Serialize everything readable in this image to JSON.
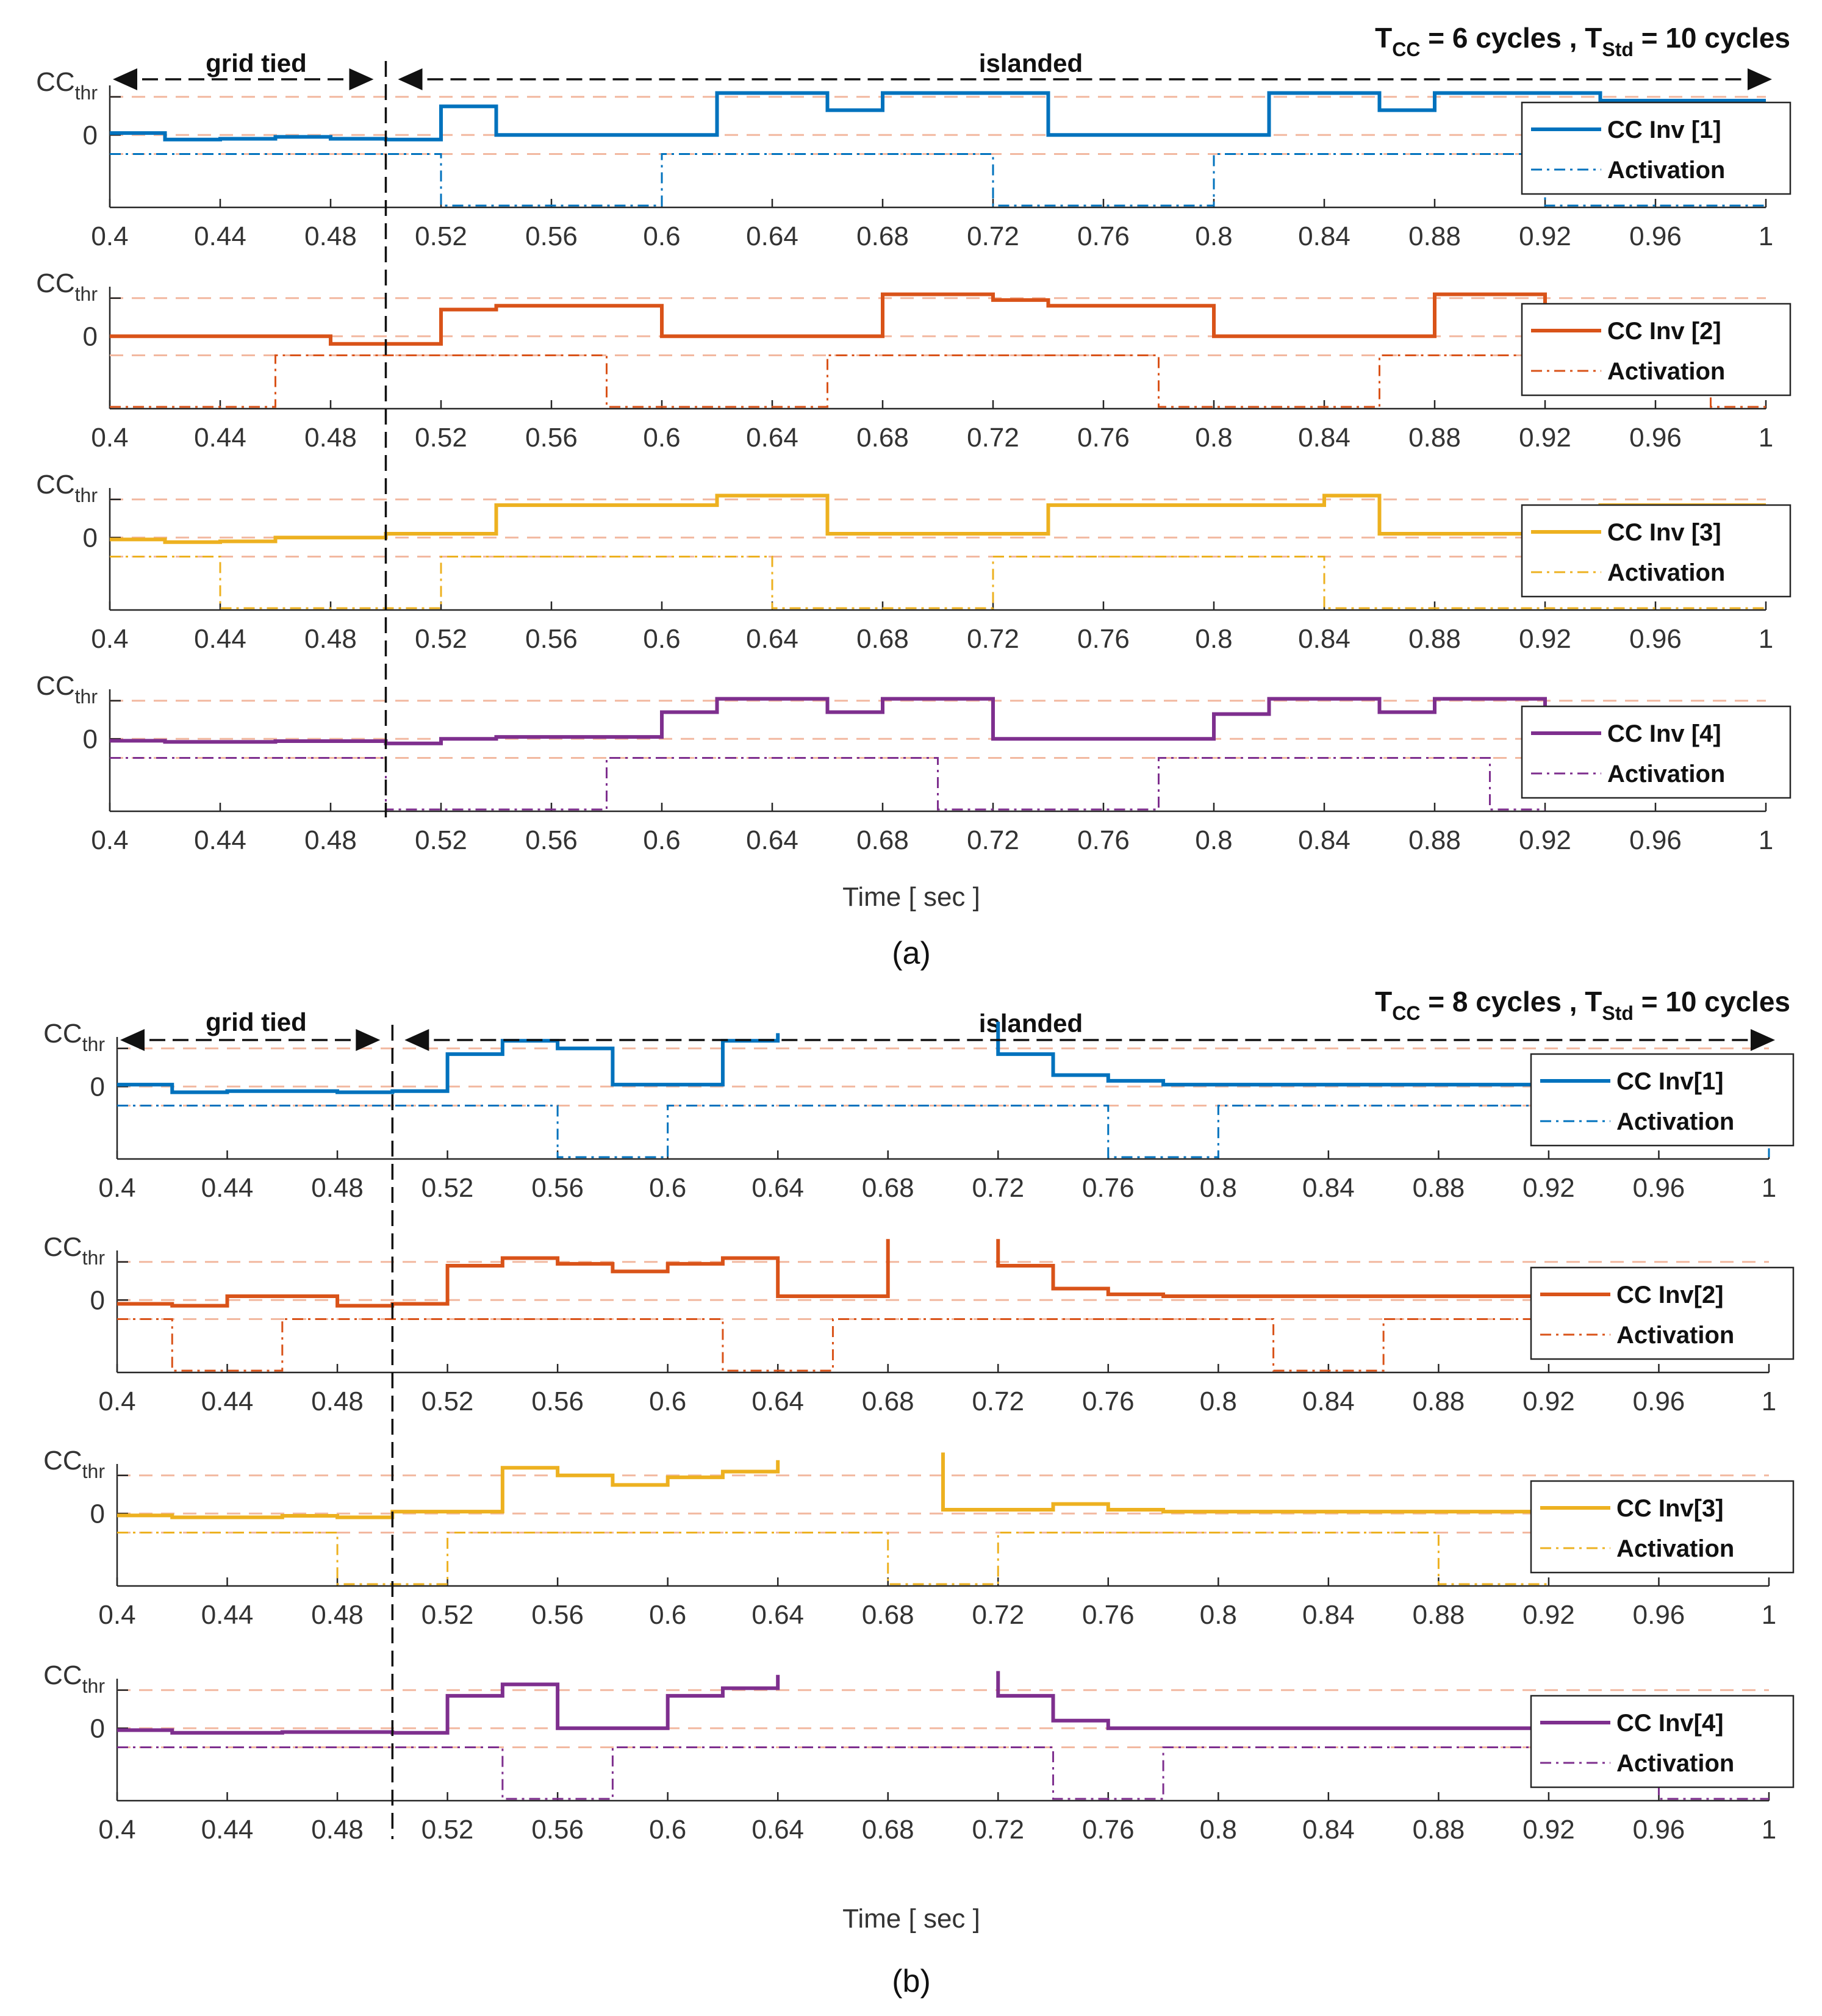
{
  "chart_data": [
    {
      "panel": "a",
      "type": "line",
      "caption": "(a)",
      "header": {
        "t_cc_text": "T",
        "t_cc_sub": "CC",
        "t_cc_value": " = 6 cycles , ",
        "t_std_text": "T",
        "t_std_sub": "Std",
        "t_std_value": " = 10 cycles"
      },
      "regions": {
        "grid_tied": "grid tied",
        "islanded": "islanded",
        "boundary_x": 0.5
      },
      "xlabel": "Time [ sec ]",
      "xlim": [
        0.4,
        1.0
      ],
      "xticks": [
        "0.4",
        "0.44",
        "0.48",
        "0.52",
        "0.56",
        "0.6",
        "0.64",
        "0.68",
        "0.72",
        "0.76",
        "0.8",
        "0.84",
        "0.88",
        "0.92",
        "0.96",
        "1"
      ],
      "ylim": [
        -1.9,
        1.3
      ],
      "ytick_labels": {
        "thr_main": "CC",
        "thr_sub": "thr",
        "zero": "0"
      },
      "threshold": 1.0,
      "series": [
        {
          "name": "CC Inv [1]",
          "color": "#0072BD",
          "cc": [
            [
              0.4,
              0.05
            ],
            [
              0.42,
              -0.12
            ],
            [
              0.44,
              -0.1
            ],
            [
              0.46,
              -0.05
            ],
            [
              0.48,
              -0.1
            ],
            [
              0.5,
              -0.12
            ],
            [
              0.52,
              0.75
            ],
            [
              0.54,
              0.0
            ],
            [
              0.56,
              0.0
            ],
            [
              0.62,
              1.1
            ],
            [
              0.64,
              1.1
            ],
            [
              0.66,
              0.65
            ],
            [
              0.68,
              1.1
            ],
            [
              0.72,
              1.1
            ],
            [
              0.74,
              0.0
            ],
            [
              0.8,
              0.0
            ],
            [
              0.82,
              1.1
            ],
            [
              0.86,
              0.65
            ],
            [
              0.88,
              1.1
            ],
            [
              0.92,
              1.1
            ],
            [
              0.94,
              0.9
            ],
            [
              1.0,
              0.9
            ]
          ],
          "activation": [
            [
              0.4,
              1
            ],
            [
              0.52,
              0
            ],
            [
              0.6,
              1
            ],
            [
              0.72,
              0
            ],
            [
              0.8,
              1
            ],
            [
              0.92,
              0
            ],
            [
              1.0,
              0
            ]
          ]
        },
        {
          "name": "CC Inv [2]",
          "color": "#D95319",
          "cc": [
            [
              0.4,
              0.0
            ],
            [
              0.48,
              -0.2
            ],
            [
              0.5,
              -0.2
            ],
            [
              0.52,
              0.7
            ],
            [
              0.54,
              0.8
            ],
            [
              0.6,
              0.0
            ],
            [
              0.68,
              1.1
            ],
            [
              0.72,
              0.95
            ],
            [
              0.74,
              0.8
            ],
            [
              0.8,
              0.0
            ],
            [
              0.86,
              0.0
            ],
            [
              0.88,
              1.1
            ],
            [
              0.92,
              0.8
            ],
            [
              1.0,
              0.8
            ]
          ],
          "activation": [
            [
              0.4,
              0
            ],
            [
              0.46,
              1
            ],
            [
              0.58,
              0
            ],
            [
              0.66,
              1
            ],
            [
              0.78,
              0
            ],
            [
              0.86,
              1
            ],
            [
              0.98,
              0
            ],
            [
              1.0,
              0
            ]
          ]
        },
        {
          "name": "CC Inv [3]",
          "color": "#EDB120",
          "cc": [
            [
              0.4,
              -0.05
            ],
            [
              0.42,
              -0.12
            ],
            [
              0.44,
              -0.1
            ],
            [
              0.46,
              0.0
            ],
            [
              0.5,
              0.1
            ],
            [
              0.52,
              0.1
            ],
            [
              0.54,
              0.85
            ],
            [
              0.62,
              1.1
            ],
            [
              0.66,
              0.1
            ],
            [
              0.74,
              0.85
            ],
            [
              0.84,
              1.1
            ],
            [
              0.86,
              0.1
            ],
            [
              0.92,
              0.1
            ],
            [
              0.94,
              0.85
            ],
            [
              1.0,
              0.85
            ]
          ],
          "activation": [
            [
              0.4,
              1
            ],
            [
              0.44,
              0
            ],
            [
              0.52,
              1
            ],
            [
              0.64,
              0
            ],
            [
              0.72,
              1
            ],
            [
              0.84,
              0
            ],
            [
              0.92,
              0
            ],
            [
              1.0,
              0
            ]
          ]
        },
        {
          "name": "CC Inv [4]",
          "color": "#7E2F8E",
          "cc": [
            [
              0.4,
              -0.05
            ],
            [
              0.42,
              -0.08
            ],
            [
              0.46,
              -0.06
            ],
            [
              0.5,
              -0.12
            ],
            [
              0.52,
              0.0
            ],
            [
              0.54,
              0.05
            ],
            [
              0.6,
              0.7
            ],
            [
              0.62,
              1.05
            ],
            [
              0.66,
              0.7
            ],
            [
              0.68,
              1.05
            ],
            [
              0.72,
              1.05
            ],
            [
              0.72,
              0.0
            ],
            [
              0.8,
              0.0
            ],
            [
              0.8,
              0.65
            ],
            [
              0.82,
              1.05
            ],
            [
              0.86,
              0.7
            ],
            [
              0.88,
              1.05
            ],
            [
              0.92,
              1.05
            ],
            [
              0.92,
              0.0
            ]
          ],
          "activation": [
            [
              0.4,
              1
            ],
            [
              0.5,
              0
            ],
            [
              0.58,
              1
            ],
            [
              0.7,
              0
            ],
            [
              0.78,
              1
            ],
            [
              0.9,
              0
            ],
            [
              0.92,
              0
            ]
          ]
        }
      ]
    },
    {
      "panel": "b",
      "type": "line",
      "caption": "(b)",
      "header": {
        "t_cc_text": "T",
        "t_cc_sub": "CC",
        "t_cc_value": " = 8 cycles , ",
        "t_std_text": "T",
        "t_std_sub": "Std",
        "t_std_value": " = 10 cycles"
      },
      "regions": {
        "grid_tied": "grid tied",
        "islanded": "islanded",
        "boundary_x": 0.5
      },
      "xlabel": "Time [ sec ]",
      "xlim": [
        0.4,
        1.0
      ],
      "xticks": [
        "0.4",
        "0.44",
        "0.48",
        "0.52",
        "0.56",
        "0.6",
        "0.64",
        "0.68",
        "0.72",
        "0.76",
        "0.8",
        "0.84",
        "0.88",
        "0.92",
        "0.96",
        "1"
      ],
      "ylim": [
        -1.9,
        1.3
      ],
      "ytick_labels": {
        "thr_main": "CC",
        "thr_sub": "thr",
        "zero": "0"
      },
      "threshold": 1.0,
      "series": [
        {
          "name": "CC Inv[1]",
          "color": "#0072BD",
          "cc": [
            [
              0.4,
              0.05
            ],
            [
              0.42,
              -0.15
            ],
            [
              0.44,
              -0.12
            ],
            [
              0.48,
              -0.15
            ],
            [
              0.5,
              -0.12
            ],
            [
              0.52,
              0.85
            ],
            [
              0.54,
              1.2
            ],
            [
              0.56,
              1.0
            ],
            [
              0.58,
              0.05
            ],
            [
              0.62,
              1.2
            ],
            [
              0.64,
              1.4
            ],
            null,
            [
              0.72,
              1.7
            ],
            [
              0.72,
              0.85
            ],
            [
              0.74,
              0.3
            ],
            [
              0.76,
              0.15
            ],
            [
              0.78,
              0.05
            ],
            [
              0.92,
              0.05
            ],
            [
              1.0,
              0.05
            ]
          ],
          "activation": [
            [
              0.4,
              1
            ],
            [
              0.56,
              0
            ],
            [
              0.6,
              1
            ],
            [
              0.76,
              0
            ],
            [
              0.8,
              1
            ],
            [
              0.92,
              1
            ],
            [
              1.0,
              0
            ]
          ]
        },
        {
          "name": "CC Inv[2]",
          "color": "#D95319",
          "cc": [
            [
              0.4,
              -0.1
            ],
            [
              0.42,
              -0.15
            ],
            [
              0.44,
              0.1
            ],
            [
              0.48,
              -0.15
            ],
            [
              0.5,
              -0.1
            ],
            [
              0.52,
              0.9
            ],
            [
              0.54,
              1.1
            ],
            [
              0.56,
              0.95
            ],
            [
              0.58,
              0.75
            ],
            [
              0.6,
              0.95
            ],
            [
              0.62,
              1.1
            ],
            [
              0.64,
              0.1
            ],
            [
              0.68,
              0.1
            ],
            [
              0.68,
              1.6
            ],
            null,
            [
              0.72,
              1.6
            ],
            [
              0.72,
              0.9
            ],
            [
              0.74,
              0.3
            ],
            [
              0.76,
              0.15
            ],
            [
              0.78,
              0.1
            ],
            [
              0.92,
              0.1
            ],
            [
              1.0,
              0.1
            ]
          ],
          "activation": [
            [
              0.4,
              1
            ],
            [
              0.42,
              0
            ],
            [
              0.46,
              1
            ],
            [
              0.62,
              0
            ],
            [
              0.66,
              1
            ],
            [
              0.82,
              0
            ],
            [
              0.86,
              1
            ],
            [
              0.92,
              1
            ],
            [
              1.0,
              1
            ]
          ]
        },
        {
          "name": "CC Inv[3]",
          "color": "#EDB120",
          "cc": [
            [
              0.4,
              -0.05
            ],
            [
              0.42,
              -0.1
            ],
            [
              0.46,
              -0.06
            ],
            [
              0.48,
              -0.1
            ],
            [
              0.5,
              0.05
            ],
            [
              0.52,
              0.05
            ],
            [
              0.54,
              1.2
            ],
            [
              0.56,
              1.0
            ],
            [
              0.58,
              0.75
            ],
            [
              0.6,
              0.95
            ],
            [
              0.62,
              1.1
            ],
            [
              0.64,
              1.4
            ],
            null,
            [
              0.7,
              1.6
            ],
            [
              0.7,
              0.1
            ],
            [
              0.74,
              0.1
            ],
            [
              0.74,
              0.25
            ],
            [
              0.76,
              0.1
            ],
            [
              0.78,
              0.05
            ],
            [
              0.92,
              0.05
            ]
          ],
          "activation": [
            [
              0.4,
              1
            ],
            [
              0.48,
              0
            ],
            [
              0.52,
              1
            ],
            [
              0.68,
              0
            ],
            [
              0.72,
              1
            ],
            [
              0.88,
              0
            ],
            [
              0.92,
              0
            ]
          ]
        },
        {
          "name": "CC Inv[4]",
          "color": "#7E2F8E",
          "cc": [
            [
              0.4,
              -0.05
            ],
            [
              0.42,
              -0.12
            ],
            [
              0.46,
              -0.1
            ],
            [
              0.5,
              -0.12
            ],
            [
              0.52,
              0.85
            ],
            [
              0.54,
              1.15
            ],
            [
              0.56,
              0.0
            ],
            [
              0.6,
              0.0
            ],
            [
              0.6,
              0.85
            ],
            [
              0.62,
              1.05
            ],
            [
              0.64,
              1.4
            ],
            null,
            [
              0.72,
              1.5
            ],
            [
              0.72,
              0.85
            ],
            [
              0.74,
              0.2
            ],
            [
              0.76,
              0.0
            ],
            [
              0.92,
              0.0
            ],
            [
              1.0,
              0.0
            ]
          ],
          "activation": [
            [
              0.4,
              1
            ],
            [
              0.54,
              0
            ],
            [
              0.58,
              1
            ],
            [
              0.74,
              0
            ],
            [
              0.78,
              1
            ],
            [
              0.92,
              1
            ],
            [
              0.96,
              0
            ],
            [
              1.0,
              0
            ]
          ]
        }
      ]
    }
  ],
  "legend": {
    "activation_label": "Activation"
  }
}
